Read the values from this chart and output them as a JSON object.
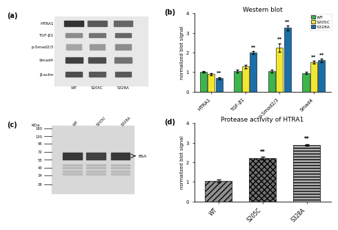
{
  "panel_b": {
    "title": "Western blot",
    "categories": [
      "HTRA1",
      "TGF-β1",
      "p-Smad2/3",
      "Smad4"
    ],
    "wt": [
      1.0,
      1.05,
      1.05,
      0.95
    ],
    "s205c": [
      0.9,
      1.28,
      2.25,
      1.5
    ],
    "s328a": [
      0.68,
      2.0,
      3.25,
      1.6
    ],
    "wt_err": [
      0.04,
      0.08,
      0.06,
      0.05
    ],
    "s205c_err": [
      0.05,
      0.09,
      0.22,
      0.08
    ],
    "s328a_err": [
      0.06,
      0.07,
      0.13,
      0.08
    ],
    "ylabel": "normalized blot signal",
    "ylim": [
      0,
      4
    ],
    "yticks": [
      0,
      1,
      2,
      3,
      4
    ],
    "color_wt": "#3cb54a",
    "color_s205c": "#f0e830",
    "color_s328a": "#1a6fa8",
    "significance_s205c": [
      false,
      false,
      true,
      true
    ],
    "significance_s328a": [
      true,
      true,
      true,
      true
    ],
    "legend_labels": [
      "WT",
      "S205C",
      "S328A"
    ]
  },
  "panel_d": {
    "title": "Protease activity of HTRA1",
    "categories": [
      "WT",
      "S205C",
      "S328A"
    ],
    "values": [
      1.05,
      2.2,
      2.88
    ],
    "errors": [
      0.06,
      0.07,
      0.05
    ],
    "ylabel": "normalized blot signal",
    "ylim": [
      0,
      4
    ],
    "yticks": [
      0,
      1,
      2,
      3,
      4
    ],
    "significance": [
      false,
      true,
      true
    ],
    "hatches": [
      "////",
      ".....",
      "-----"
    ],
    "colors": [
      "#909090",
      "#707070",
      "#b0b0b0"
    ]
  },
  "bg_color": "#ffffff",
  "panel_labels": [
    "(a)",
    "(b)",
    "(c)",
    "(d)"
  ],
  "panel_a": {
    "band_labels": [
      "HTRA1",
      "TGF-β1",
      "p-Smad2/3",
      "Smad4",
      "β-actin"
    ],
    "lane_labels": [
      "WT",
      "S205C",
      "S328A"
    ]
  },
  "panel_c": {
    "mw_markers": [
      180,
      130,
      95,
      72,
      55,
      43,
      34,
      26
    ],
    "lane_labels": [
      "WT",
      "S205C",
      "S328A"
    ],
    "bsa_label": "← BSA"
  }
}
